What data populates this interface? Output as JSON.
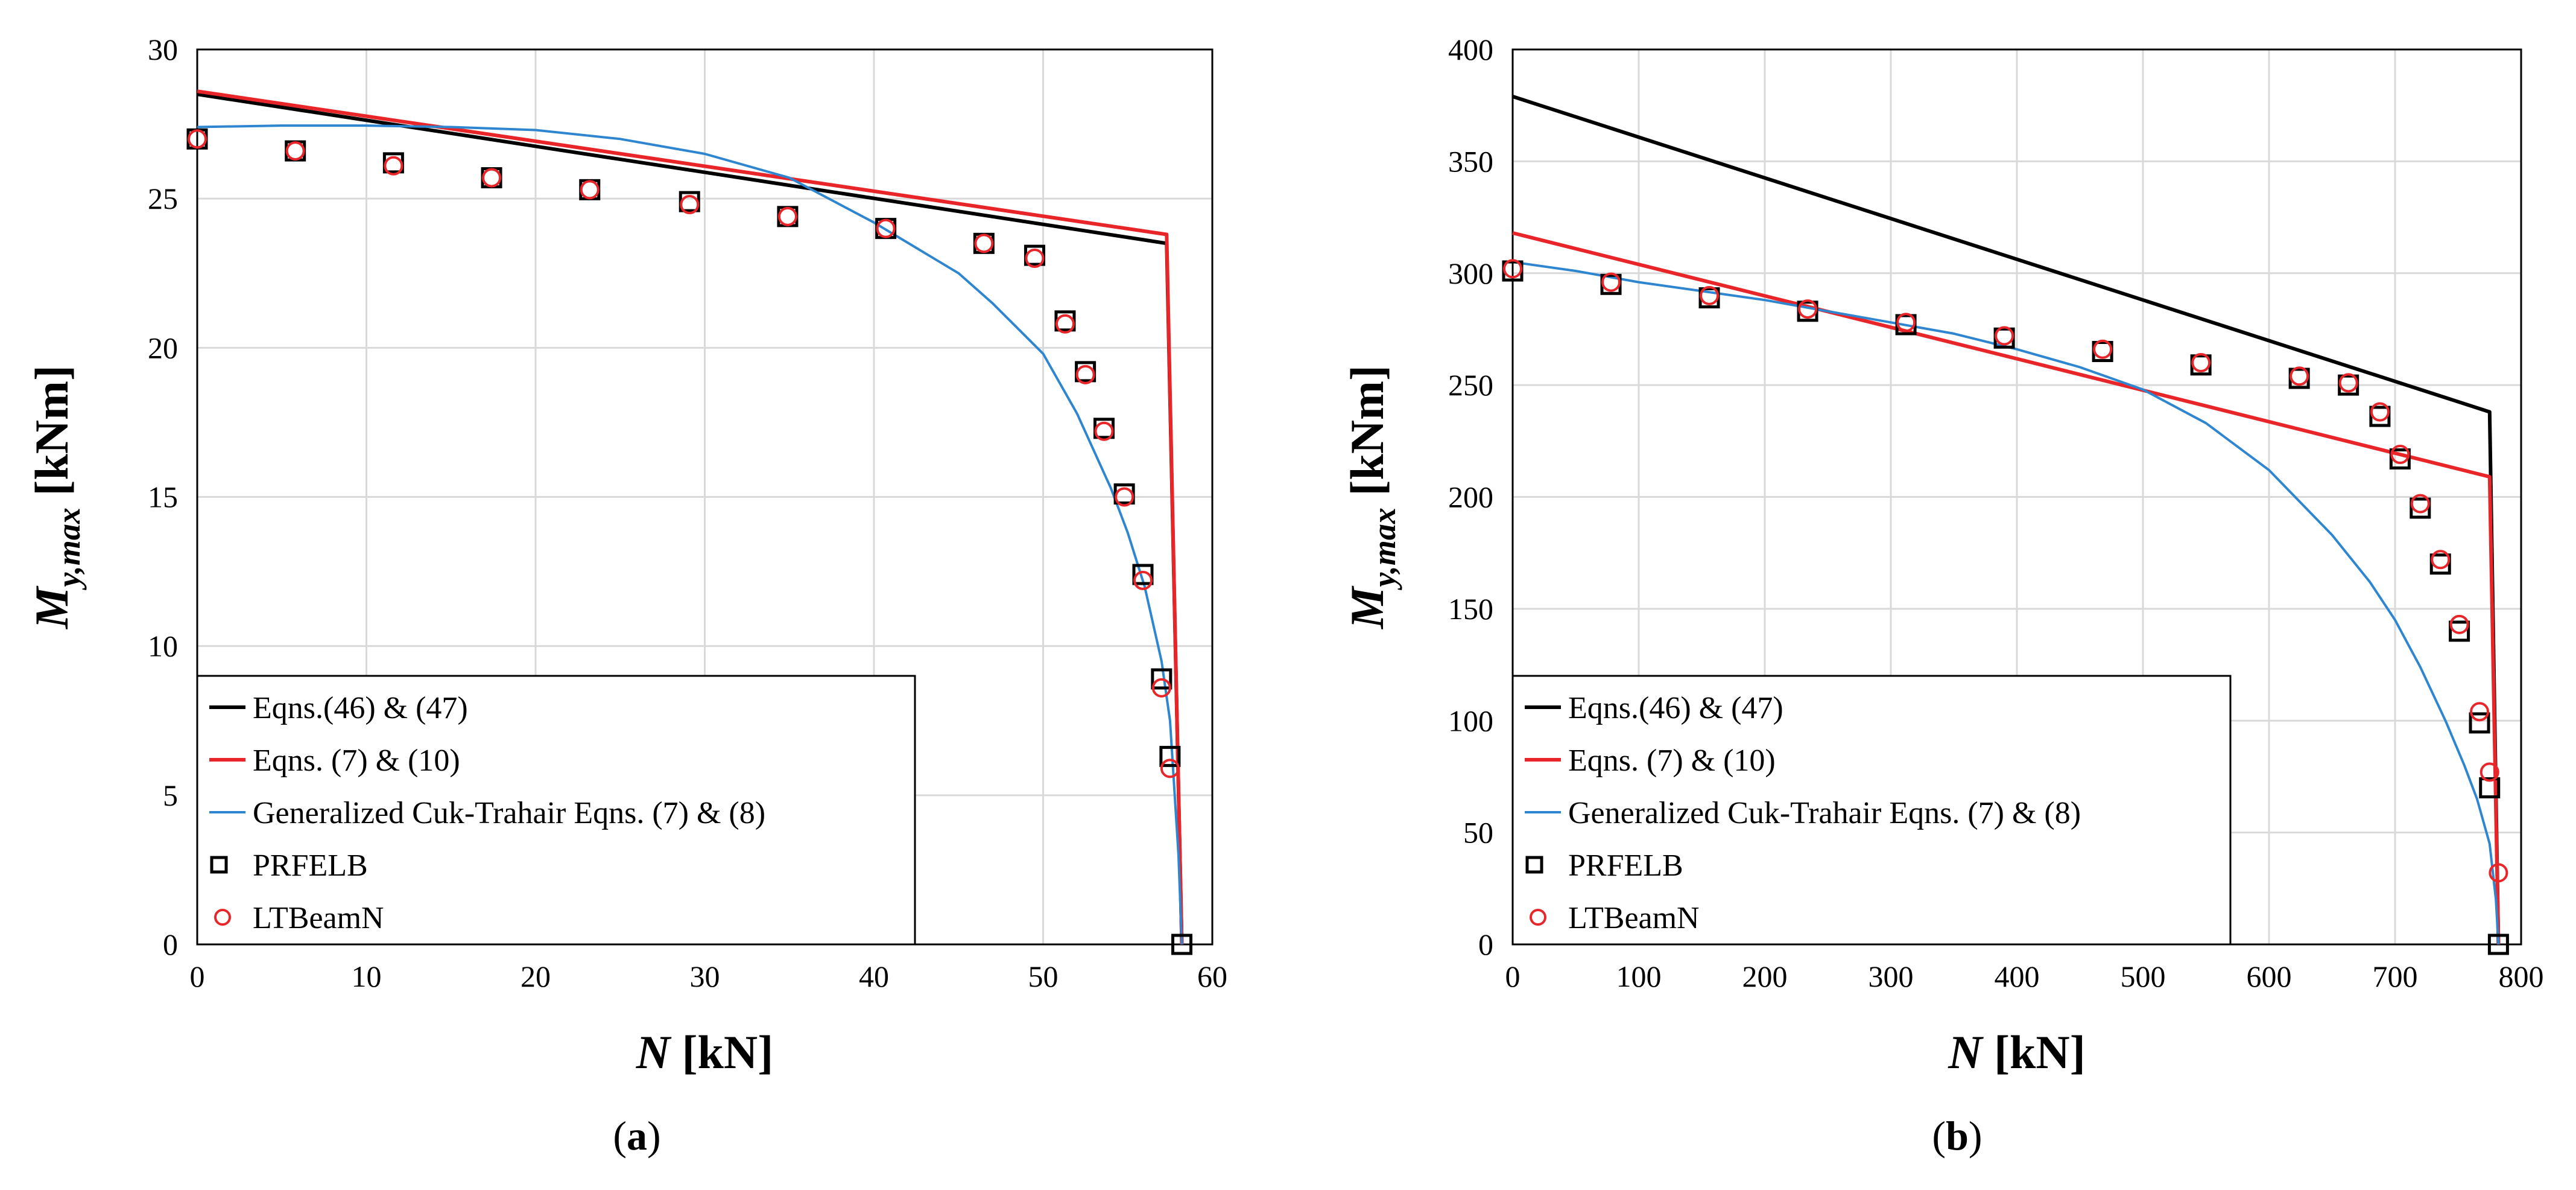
{
  "legend_entries": [
    {
      "key": "eqn46_47",
      "label": "Eqns.(46) & (47)",
      "color": "#000000",
      "style": "line"
    },
    {
      "key": "eqn7_10",
      "label": "Eqns. (7) & (10)",
      "color": "#e8262a",
      "style": "line"
    },
    {
      "key": "cuk",
      "label": "Generalized Cuk-Trahair Eqns. (7) & (8)",
      "color": "#2e86d0",
      "style": "line"
    },
    {
      "key": "prfelb",
      "label": "PRFELB",
      "color": "#000000",
      "style": "square"
    },
    {
      "key": "ltbeam",
      "label": "LTBeamN",
      "color": "#e8262a",
      "style": "circle"
    }
  ],
  "chart_data": [
    {
      "panel": "(a)",
      "type": "line",
      "xlabel": "N [kN]",
      "ylabel": "My,max [kNm]",
      "xlim": [
        0,
        60
      ],
      "ylim": [
        0,
        30
      ],
      "xticks": [
        0,
        10,
        20,
        30,
        40,
        50,
        60
      ],
      "yticks": [
        0,
        5,
        10,
        15,
        20,
        25,
        30
      ],
      "grid": true,
      "legend_position": "bottom-left",
      "series": [
        {
          "key": "eqn46_47",
          "x": [
            0,
            57.3,
            58.2
          ],
          "y": [
            28.5,
            23.5,
            0
          ]
        },
        {
          "key": "eqn7_10",
          "x": [
            0,
            57.3,
            58.2
          ],
          "y": [
            28.6,
            23.8,
            0
          ]
        },
        {
          "key": "cuk",
          "x": [
            0,
            5,
            10,
            15,
            20,
            25,
            30,
            35,
            40,
            45,
            47,
            50,
            52,
            54,
            55,
            56,
            57,
            57.5,
            58,
            58.2
          ],
          "y": [
            27.4,
            27.45,
            27.45,
            27.4,
            27.3,
            27.0,
            26.5,
            25.7,
            24.2,
            22.5,
            21.5,
            19.8,
            17.8,
            15.3,
            13.8,
            12.0,
            9.5,
            7.5,
            3.0,
            0
          ]
        },
        {
          "key": "prfelb",
          "x": [
            0,
            5.8,
            11.6,
            17.4,
            23.2,
            29.1,
            34.9,
            40.7,
            46.5,
            49.5,
            51.3,
            52.5,
            53.6,
            54.8,
            55.9,
            57.0,
            57.5,
            58.2
          ],
          "y": [
            27.0,
            26.6,
            26.2,
            25.7,
            25.3,
            24.9,
            24.4,
            24.0,
            23.5,
            23.1,
            20.9,
            19.2,
            17.3,
            15.1,
            12.4,
            8.9,
            6.3,
            0
          ]
        },
        {
          "key": "ltbeam",
          "x": [
            0,
            5.8,
            11.6,
            17.4,
            23.2,
            29.1,
            34.9,
            40.7,
            46.5,
            49.5,
            51.3,
            52.5,
            53.6,
            54.8,
            55.9,
            57.0,
            57.5
          ],
          "y": [
            27.0,
            26.6,
            26.1,
            25.7,
            25.3,
            24.8,
            24.4,
            24.0,
            23.5,
            23.0,
            20.8,
            19.1,
            17.2,
            15.0,
            12.2,
            8.6,
            5.9
          ]
        }
      ]
    },
    {
      "panel": "(b)",
      "type": "line",
      "xlabel": "N [kN]",
      "ylabel": "My,max [kNm]",
      "xlim": [
        0,
        800
      ],
      "ylim": [
        0,
        400
      ],
      "xticks": [
        0,
        100,
        200,
        300,
        400,
        500,
        600,
        700,
        800
      ],
      "yticks": [
        0,
        50,
        100,
        150,
        200,
        250,
        300,
        350,
        400
      ],
      "grid": true,
      "legend_position": "bottom-left",
      "series": [
        {
          "key": "eqn46_47",
          "x": [
            0,
            775,
            782
          ],
          "y": [
            379,
            238,
            0
          ]
        },
        {
          "key": "eqn7_10",
          "x": [
            0,
            775,
            782
          ],
          "y": [
            318,
            209,
            0
          ]
        },
        {
          "key": "cuk",
          "x": [
            0,
            50,
            100,
            150,
            200,
            250,
            300,
            350,
            400,
            450,
            500,
            550,
            600,
            650,
            680,
            700,
            720,
            740,
            755,
            765,
            775,
            780,
            782
          ],
          "y": [
            305,
            301,
            296,
            292,
            288,
            283,
            278,
            273,
            266,
            258,
            248,
            233,
            212,
            183,
            162,
            145,
            124,
            100,
            80,
            65,
            45,
            20,
            0
          ]
        },
        {
          "key": "prfelb",
          "x": [
            0,
            78,
            156,
            234,
            312,
            390,
            468,
            546,
            624,
            663,
            688,
            704,
            720,
            736,
            751,
            767,
            775,
            782
          ],
          "y": [
            301,
            295,
            289,
            283,
            277,
            271,
            265,
            259,
            253,
            250,
            236,
            217,
            195,
            170,
            140,
            99,
            70,
            0
          ]
        },
        {
          "key": "ltbeam",
          "x": [
            0,
            78,
            156,
            234,
            312,
            390,
            468,
            546,
            624,
            663,
            688,
            704,
            720,
            736,
            751,
            767,
            775,
            782
          ],
          "y": [
            302,
            296,
            290,
            284,
            278,
            272,
            266,
            260,
            254,
            251,
            238,
            219,
            197,
            172,
            143,
            104,
            77,
            32
          ]
        }
      ]
    }
  ]
}
